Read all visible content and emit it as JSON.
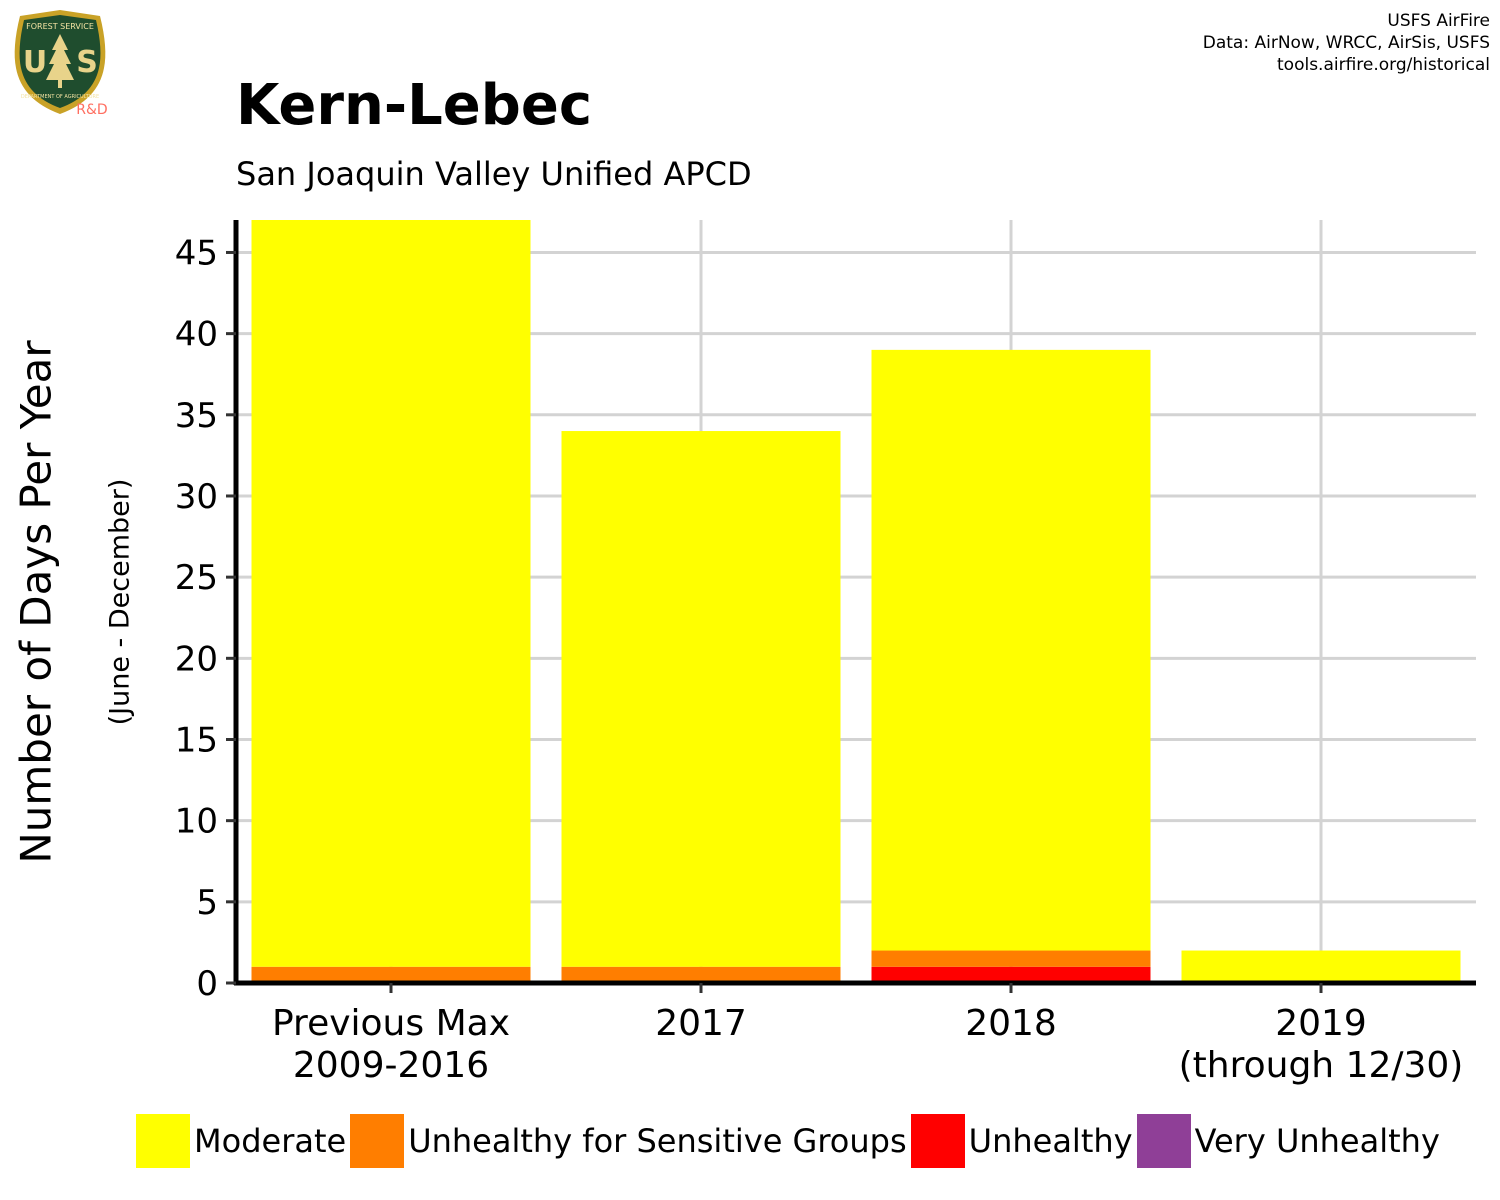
{
  "header": {
    "title": "Kern-Lebec",
    "subtitle": "San Joaquin Valley Unified APCD",
    "credits": [
      "USFS AirFire",
      "Data: AirNow, WRCC, AirSis, USFS",
      "tools.airfire.org/historical"
    ],
    "logo": {
      "icon": "usfs-shield-logo",
      "top_text": "FOREST SERVICE",
      "letters": [
        "U",
        "S"
      ],
      "bottom_text": "DEPARTMENT OF AGRICULTURE",
      "badge": "R&D"
    }
  },
  "chart_data": {
    "type": "bar",
    "stacked": true,
    "categories": [
      [
        "Previous Max",
        "2009-2016"
      ],
      [
        "2017"
      ],
      [
        "2018"
      ],
      [
        "2019",
        "(through 12/30)"
      ]
    ],
    "series": [
      {
        "name": "Unhealthy",
        "color": "#ff0000",
        "values": [
          0,
          0,
          1,
          0
        ]
      },
      {
        "name": "Unhealthy for Sensitive Groups",
        "color": "#ff7e00",
        "values": [
          1,
          1,
          1,
          0
        ]
      },
      {
        "name": "Moderate",
        "color": "#ffff00",
        "values": [
          46,
          33,
          37,
          2
        ]
      },
      {
        "name": "Very Unhealthy",
        "color": "#8f3f97",
        "values": [
          0,
          0,
          0,
          0
        ]
      }
    ],
    "legend_order": [
      "Moderate",
      "Unhealthy for Sensitive Groups",
      "Unhealthy",
      "Very Unhealthy"
    ],
    "ylabel": "Number of Days Per Year",
    "ylabel_secondary": "(June - December)",
    "xlabel": "",
    "ylim": [
      0,
      47
    ],
    "yticks": [
      0,
      5,
      10,
      15,
      20,
      25,
      30,
      35,
      40,
      45
    ],
    "grid": true,
    "legend_position": "bottom"
  }
}
